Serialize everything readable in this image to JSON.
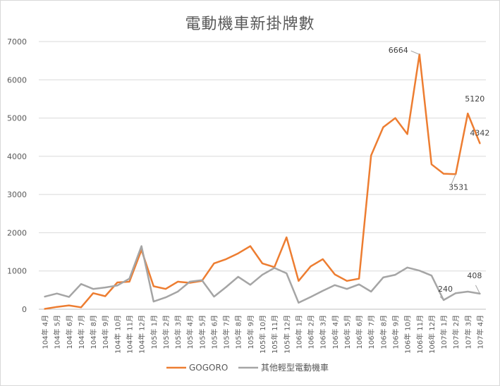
{
  "chart_data": {
    "type": "line",
    "title": "電動機車新掛牌數",
    "ylim": [
      0,
      7000
    ],
    "yticks": [
      0,
      1000,
      2000,
      3000,
      4000,
      5000,
      6000,
      7000
    ],
    "grid": "horizontal",
    "legend_position": "bottom",
    "categories": [
      "104年 4月",
      "104年 5月",
      "104年 6月",
      "104年 7月",
      "104年 8月",
      "104年 9月",
      "104年 10月",
      "104年 11月",
      "104年 12月",
      "105年 1月",
      "105年 2月",
      "105年 3月",
      "105年 4月",
      "105年 5月",
      "105年 6月",
      "105年 7月",
      "105年 8月",
      "105年 9月",
      "105年 10月",
      "105年 11月",
      "105年 12月",
      "106年 1月",
      "106年 2月",
      "106年 3月",
      "106年 4月",
      "106年 5月",
      "106年 6月",
      "106年 7月",
      "106年 8月",
      "106年 9月",
      "106年 10月",
      "106年 11月",
      "106年 12月",
      "107年 1月",
      "107年 2月",
      "107年 3月",
      "107年 4月"
    ],
    "series": [
      {
        "name": "GOGORO",
        "color": "#ed7d31",
        "values": [
          10,
          60,
          100,
          50,
          420,
          340,
          700,
          720,
          1550,
          600,
          530,
          720,
          690,
          740,
          1200,
          1310,
          1460,
          1650,
          1200,
          1100,
          1880,
          740,
          1120,
          1310,
          910,
          740,
          800,
          4020,
          4760,
          5000,
          4580,
          6664,
          3790,
          3545,
          3531,
          5120,
          4342
        ]
      },
      {
        "name": "其他輕型電動機車",
        "color": "#a5a5a5",
        "values": [
          330,
          410,
          320,
          660,
          530,
          570,
          620,
          800,
          1650,
          200,
          310,
          460,
          720,
          760,
          330,
          580,
          850,
          640,
          900,
          1080,
          940,
          170,
          320,
          480,
          630,
          530,
          650,
          460,
          830,
          900,
          1090,
          1010,
          880,
          240,
          420,
          460,
          408
        ]
      }
    ],
    "annotations": [
      {
        "series": 0,
        "index": 31,
        "text": "6664"
      },
      {
        "series": 0,
        "index": 34,
        "text": "3531"
      },
      {
        "series": 0,
        "index": 35,
        "text": "5120"
      },
      {
        "series": 0,
        "index": 36,
        "text": "4342"
      },
      {
        "series": 1,
        "index": 33,
        "text": "240"
      },
      {
        "series": 1,
        "index": 36,
        "text": "408"
      }
    ]
  }
}
